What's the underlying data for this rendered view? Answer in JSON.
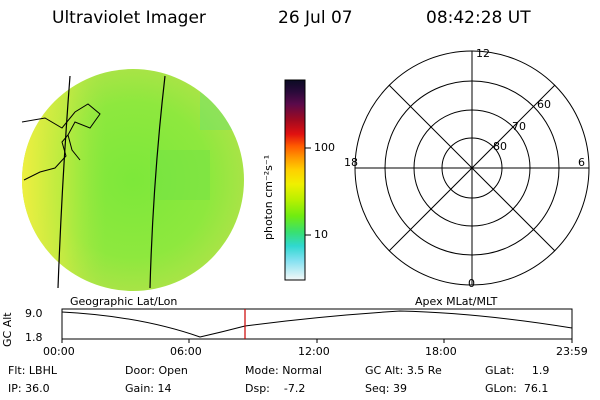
{
  "header": {
    "title": "Ultraviolet Imager",
    "date": "26 Jul 07",
    "time": "08:42:28 UT"
  },
  "colorbar": {
    "label": "photon cm⁻²s⁻¹",
    "ticks": [
      "100",
      "10"
    ],
    "colors": [
      "#0b0b24",
      "#2a0a3a",
      "#5a0a4a",
      "#8a0a20",
      "#c00a12",
      "#ff3a00",
      "#ff8a00",
      "#ffc800",
      "#f0f000",
      "#bff000",
      "#80f000",
      "#40e840",
      "#30e0a0",
      "#30d8e0",
      "#90e4f0",
      "#d0f0f8",
      "#f4f8f8"
    ]
  },
  "polar_grid": {
    "mlt_labels": {
      "top": "12",
      "right": "6",
      "bottom": "0",
      "left": "18"
    },
    "lat_labels": [
      "60",
      "70",
      "80"
    ]
  },
  "timeline": {
    "y_axis_label": "GC Alt",
    "y_max": "9.0",
    "y_min": "1.8",
    "left_caption": "Geographic Lat/Lon",
    "right_caption": "Apex MLat/MLT",
    "x_ticks": [
      "00:00",
      "06:00",
      "12:00",
      "18:00",
      "23:59"
    ],
    "marker_color": "#cc0000"
  },
  "status": {
    "row1": [
      {
        "label": "Flt:",
        "value": "LBHL"
      },
      {
        "label": "Door:",
        "value": "Open"
      },
      {
        "label": "Mode:",
        "value": "Normal"
      },
      {
        "label": "GC Alt:",
        "value": "3.5 Re"
      },
      {
        "label": "GLat:",
        "value": "1.9"
      }
    ],
    "row2": [
      {
        "label": "IP:",
        "value": "36.0"
      },
      {
        "label": "Gain:",
        "value": "14"
      },
      {
        "label": "Dsp:",
        "value": "-7.2"
      },
      {
        "label": "Seq:",
        "value": "39"
      },
      {
        "label": "GLon:",
        "value": "76.1"
      }
    ]
  }
}
